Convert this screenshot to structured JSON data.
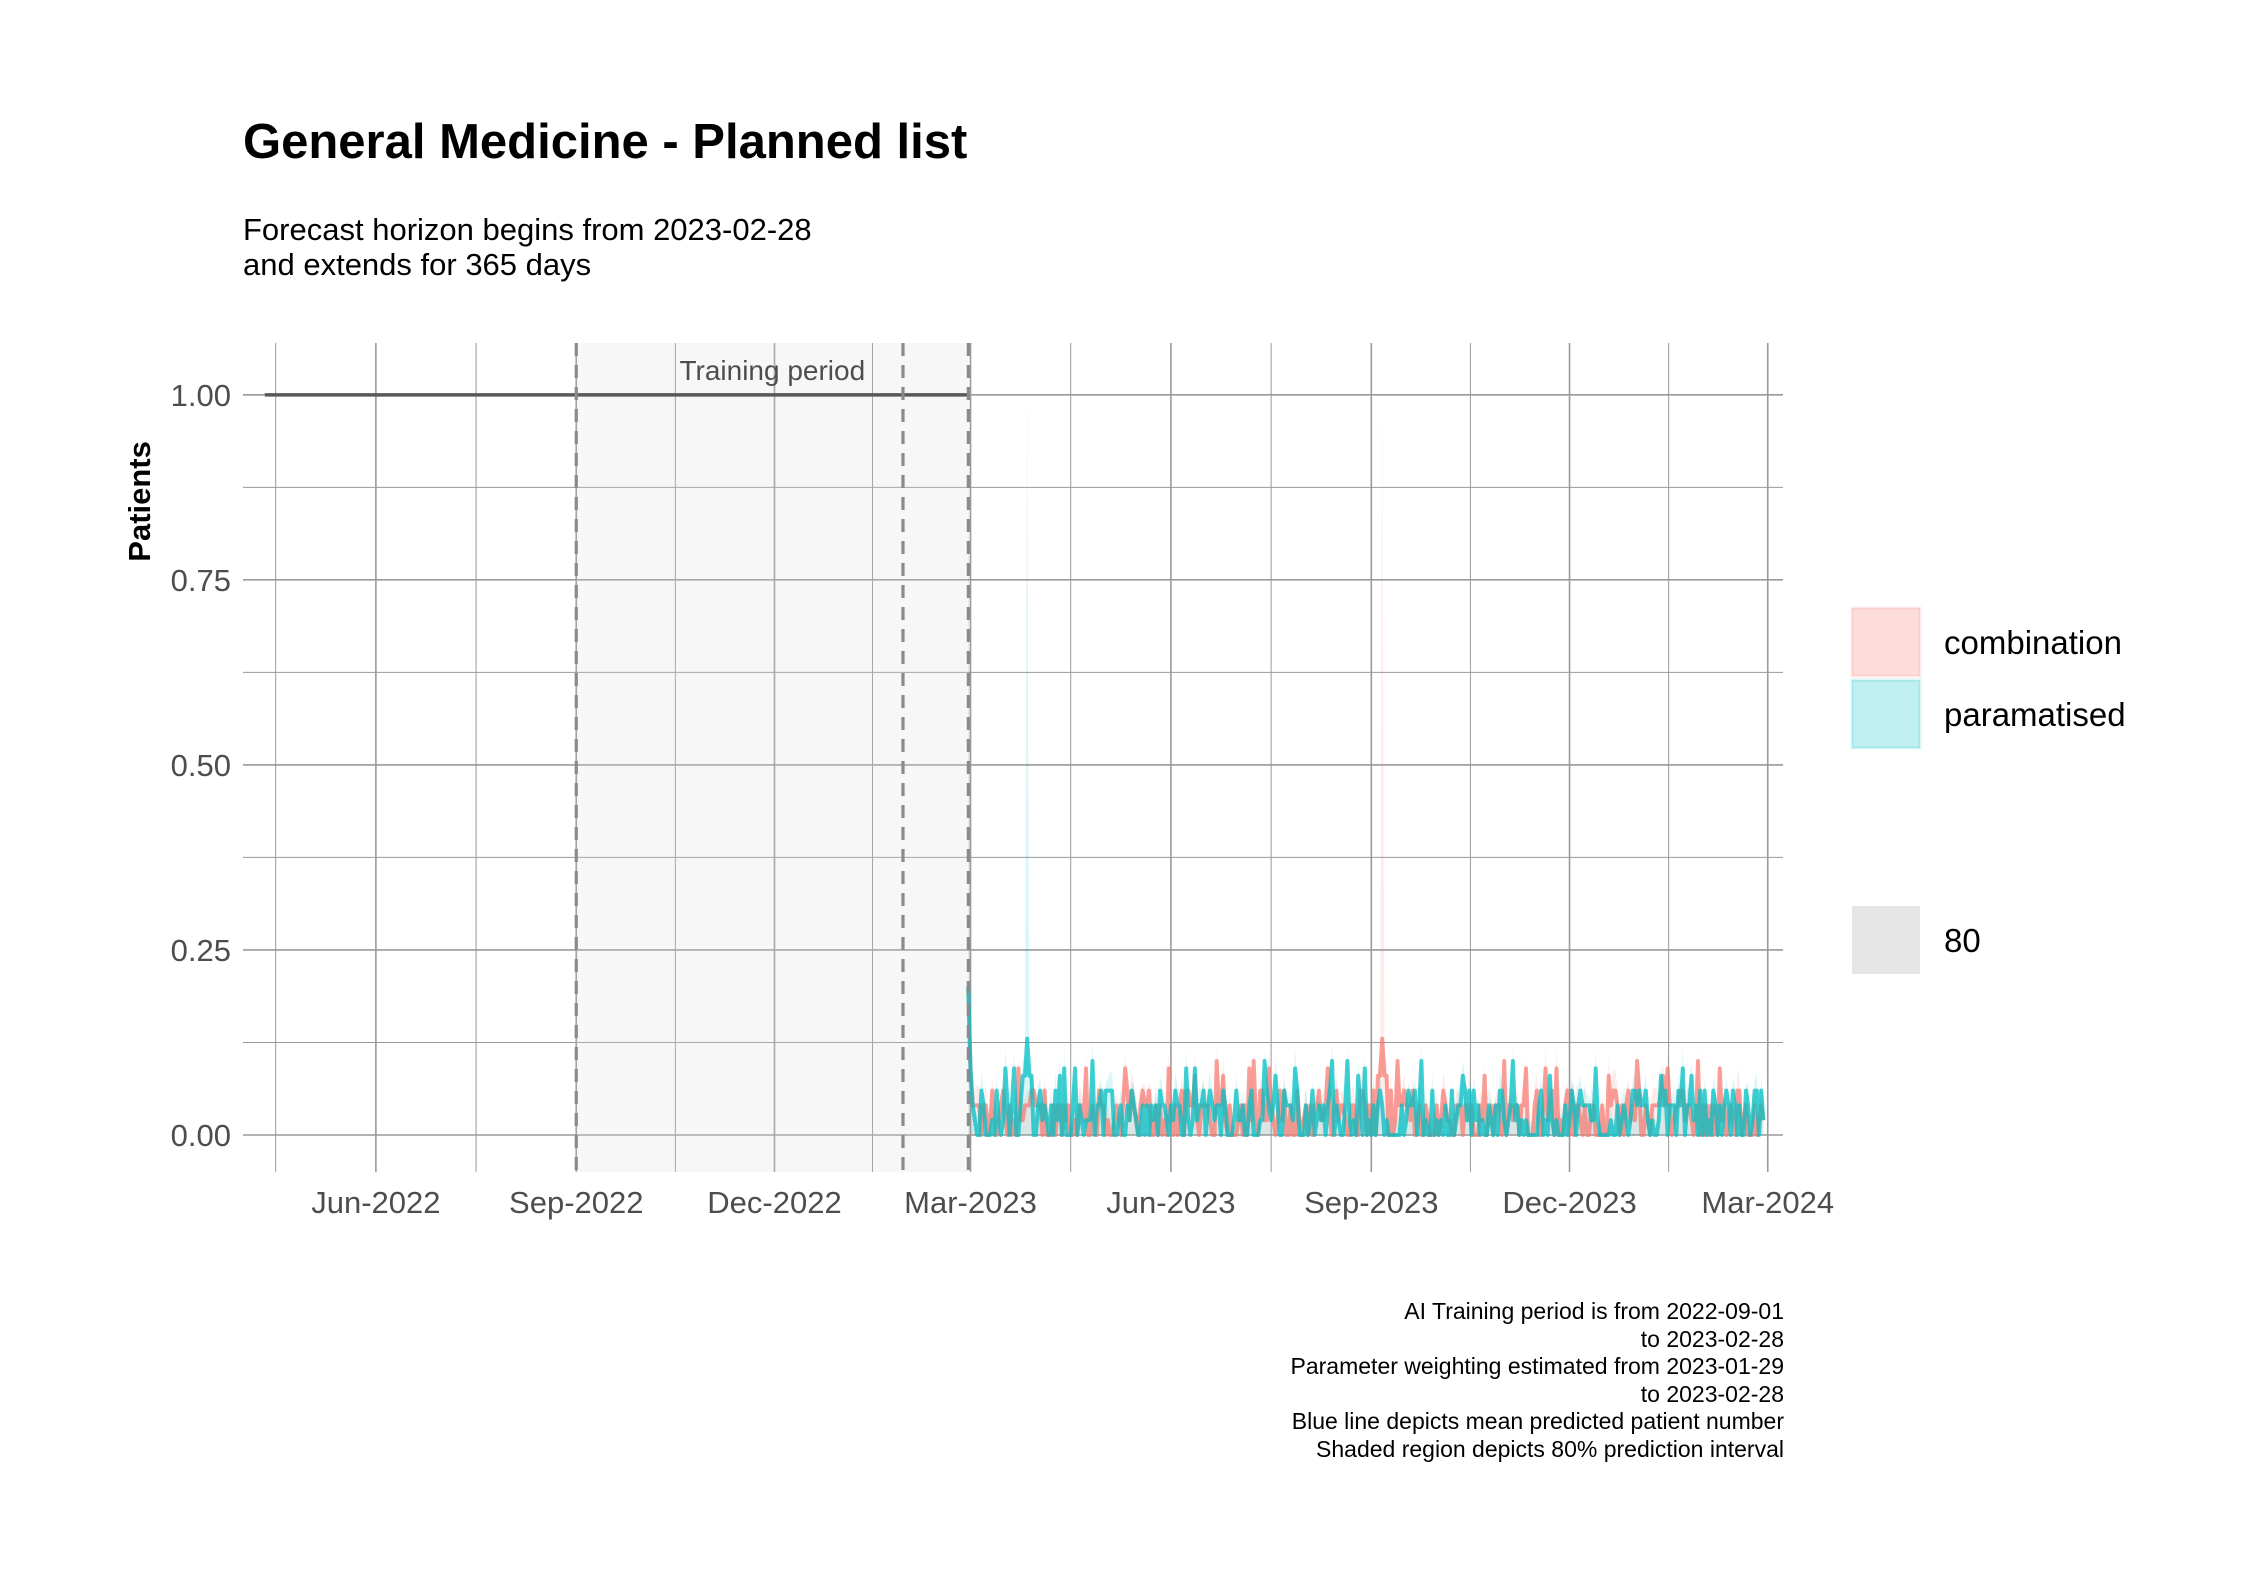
{
  "chart_data": {
    "type": "line",
    "title": "General Medicine - Planned list",
    "subtitle_lines": [
      "Forecast horizon begins from 2023-02-28",
      "and extends for 365 days"
    ],
    "ylabel": "Patients",
    "xlabel": "",
    "ylim": [
      -0.05,
      1.07
    ],
    "xlim": [
      "2022-04-01",
      "2024-03-08"
    ],
    "y_ticks": [
      "0.00",
      "0.25",
      "0.50",
      "0.75",
      "1.00"
    ],
    "x_ticks": [
      "Jun-2022",
      "Sep-2022",
      "Dec-2022",
      "Mar-2023",
      "Jun-2023",
      "Sep-2023",
      "Dec-2023",
      "Mar-2024"
    ],
    "grid": true,
    "training_period": {
      "label": "Training period",
      "start": "2022-09-01",
      "end": "2023-02-28",
      "weighting_start": "2023-01-29"
    },
    "history": {
      "start": "2022-04-11",
      "end": "2023-02-28",
      "value": 1.0
    },
    "forecast": {
      "start": "2023-02-28",
      "days": 365
    },
    "series": [
      {
        "name": "combination",
        "color": "#f8766d",
        "band_color": "#f8766d",
        "peak": {
          "date": "2023-09-06",
          "upper": 1.0,
          "value": 0.13
        }
      },
      {
        "name": "paramatised",
        "color": "#00bfc4",
        "band_color": "#00bfc4",
        "peak": {
          "date": "2023-03-27",
          "upper": 1.02,
          "value": 0.13
        }
      }
    ],
    "legend": {
      "position": "right",
      "fill_items": [
        {
          "label": "combination",
          "color": "#f8766d"
        },
        {
          "label": "paramatised",
          "color": "#00bfc4"
        }
      ],
      "interval_item": {
        "label": "80",
        "color": "#e5e5e5"
      }
    },
    "caption": [
      "AI Training period is from 2022-09-01",
      "to 2023-02-28",
      "Parameter weighting estimated from 2023-01-29",
      "to 2023-02-28",
      "Blue line depicts mean predicted patient number",
      "Shaded region depicts 80% prediction interval"
    ]
  }
}
